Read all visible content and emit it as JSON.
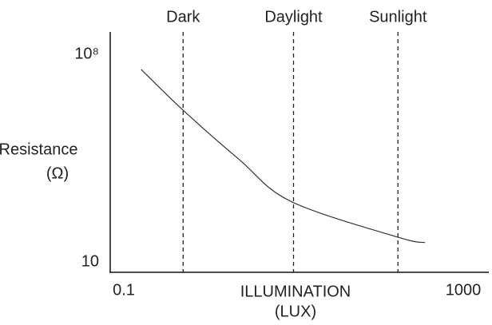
{
  "chart_data": {
    "type": "line",
    "xlabel": [
      "ILLUMINATION",
      "(LUX)"
    ],
    "ylabel": [
      "Resistance",
      "(Ω)"
    ],
    "xscale": "log",
    "yscale": "log",
    "xlim": [
      0.1,
      1000
    ],
    "ylim": [
      10,
      {
        "value": 100000000,
        "label": "10⁸"
      }
    ],
    "xticks": [
      0.1,
      1000
    ],
    "yticks": [
      10,
      {
        "value": 100000000,
        "label": "10⁸"
      }
    ],
    "grid": false,
    "annotations": [
      {
        "label": "Dark",
        "x": 0.5
      },
      {
        "label": "Daylight",
        "x": 10
      },
      {
        "label": "Sunlight",
        "x": 170
      }
    ],
    "series": [
      {
        "color": "#333333",
        "x": [
          0.16,
          0.5,
          2.3,
          9.3,
          170,
          355
        ],
        "values": [
          31000000,
          1300000,
          28000,
          1100,
          68,
          45
        ]
      }
    ]
  }
}
